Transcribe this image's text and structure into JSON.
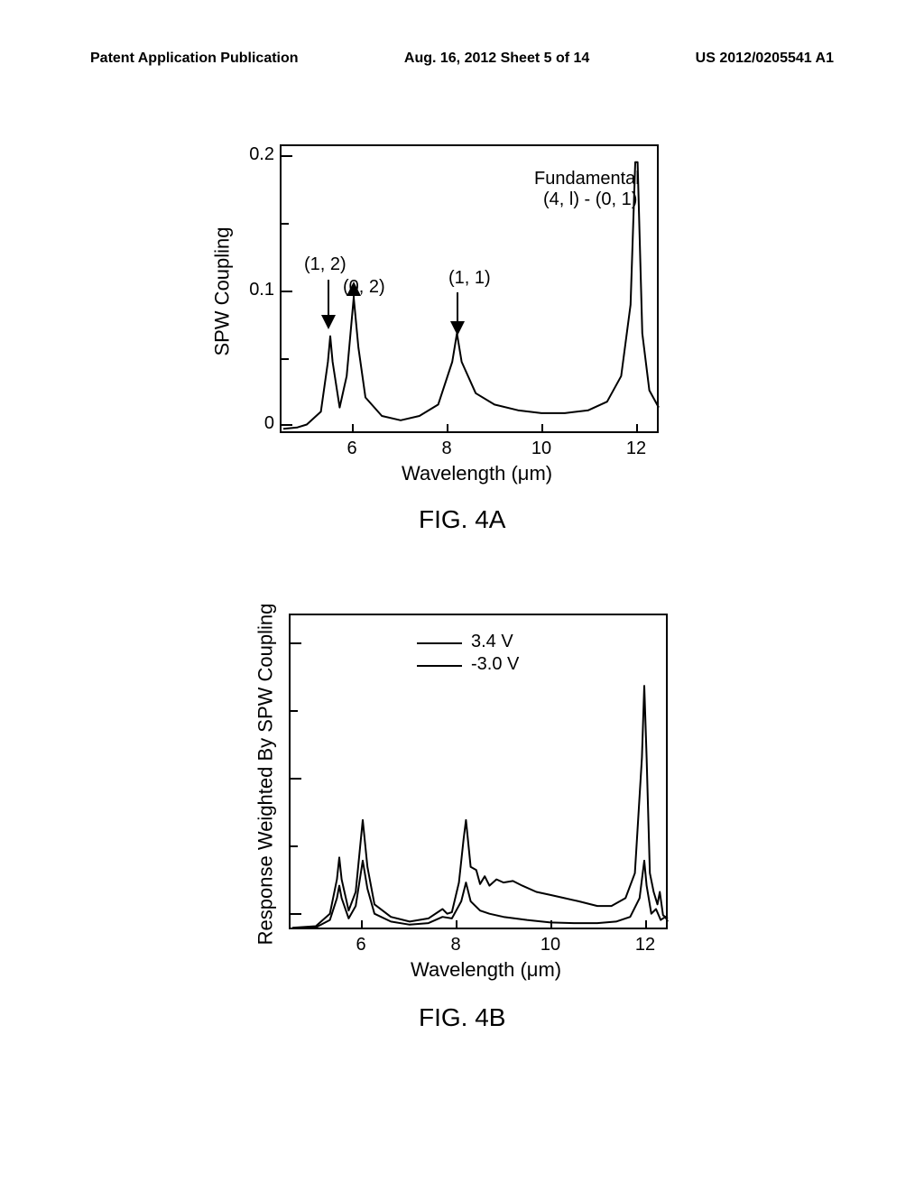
{
  "header": {
    "left": "Patent Application Publication",
    "center": "Aug. 16, 2012  Sheet 5 of 14",
    "right": "US 2012/0205541 A1"
  },
  "fig4a": {
    "caption": "FIG. 4A",
    "type": "line",
    "ylabel": "SPW Coupling",
    "xlabel": "Wavelength (μm)",
    "xlim": [
      4.5,
      12.5
    ],
    "ylim": [
      0.0,
      0.2
    ],
    "ytick_step": 0.1,
    "xticks": [
      6,
      8,
      10,
      12
    ],
    "yticks": [
      0.0,
      0.1,
      0.2
    ],
    "line_color": "#000000",
    "line_width": 2,
    "background_color": "#ffffff",
    "border_color": "#000000",
    "annotations": {
      "peak12": {
        "label": "(1, 2)"
      },
      "peak02": {
        "label": "(0, 2)"
      },
      "peak11": {
        "label": "(1, 1)"
      },
      "fundamental1": {
        "label": "Fundamental"
      },
      "fundamental2": {
        "label": "(4, l) - (0, 1)"
      }
    },
    "annotation_fontsize": 20,
    "label_fontsize": 22,
    "tick_fontsize": 20,
    "series": [
      {
        "x": 4.5,
        "y": 0.003
      },
      {
        "x": 4.8,
        "y": 0.004
      },
      {
        "x": 5.0,
        "y": 0.006
      },
      {
        "x": 5.3,
        "y": 0.015
      },
      {
        "x": 5.45,
        "y": 0.05
      },
      {
        "x": 5.5,
        "y": 0.068
      },
      {
        "x": 5.55,
        "y": 0.05
      },
      {
        "x": 5.7,
        "y": 0.018
      },
      {
        "x": 5.85,
        "y": 0.04
      },
      {
        "x": 6.0,
        "y": 0.095
      },
      {
        "x": 6.1,
        "y": 0.06
      },
      {
        "x": 6.25,
        "y": 0.025
      },
      {
        "x": 6.6,
        "y": 0.012
      },
      {
        "x": 7.0,
        "y": 0.009
      },
      {
        "x": 7.4,
        "y": 0.012
      },
      {
        "x": 7.8,
        "y": 0.02
      },
      {
        "x": 8.1,
        "y": 0.05
      },
      {
        "x": 8.2,
        "y": 0.07
      },
      {
        "x": 8.3,
        "y": 0.05
      },
      {
        "x": 8.6,
        "y": 0.028
      },
      {
        "x": 9.0,
        "y": 0.02
      },
      {
        "x": 9.5,
        "y": 0.016
      },
      {
        "x": 10.0,
        "y": 0.014
      },
      {
        "x": 10.5,
        "y": 0.014
      },
      {
        "x": 11.0,
        "y": 0.016
      },
      {
        "x": 11.4,
        "y": 0.022
      },
      {
        "x": 11.7,
        "y": 0.04
      },
      {
        "x": 11.9,
        "y": 0.09
      },
      {
        "x": 12.0,
        "y": 0.19
      },
      {
        "x": 12.05,
        "y": 0.19
      },
      {
        "x": 12.15,
        "y": 0.07
      },
      {
        "x": 12.3,
        "y": 0.03
      },
      {
        "x": 12.5,
        "y": 0.018
      }
    ]
  },
  "fig4b": {
    "caption": "FIG. 4B",
    "type": "line",
    "ylabel": "Response Weighted By SPW Coupling",
    "xlabel": "Wavelength (μm)",
    "xlim": [
      4.5,
      12.5
    ],
    "ylim": [
      0.0,
      1.0
    ],
    "xticks": [
      6,
      8,
      10,
      12
    ],
    "line_color": "#000000",
    "line_width": 2,
    "background_color": "#ffffff",
    "border_color": "#000000",
    "legend": {
      "items": [
        {
          "label": "3.4 V",
          "color": "#000000"
        },
        {
          "label": "-3.0 V",
          "color": "#000000"
        }
      ]
    },
    "label_fontsize": 22,
    "tick_fontsize": 20,
    "legend_fontsize": 20,
    "series_a": [
      {
        "x": 4.5,
        "y": 0.005
      },
      {
        "x": 5.0,
        "y": 0.01
      },
      {
        "x": 5.3,
        "y": 0.05
      },
      {
        "x": 5.45,
        "y": 0.16
      },
      {
        "x": 5.5,
        "y": 0.23
      },
      {
        "x": 5.55,
        "y": 0.16
      },
      {
        "x": 5.7,
        "y": 0.06
      },
      {
        "x": 5.85,
        "y": 0.12
      },
      {
        "x": 6.0,
        "y": 0.35
      },
      {
        "x": 6.1,
        "y": 0.2
      },
      {
        "x": 6.25,
        "y": 0.08
      },
      {
        "x": 6.6,
        "y": 0.04
      },
      {
        "x": 7.0,
        "y": 0.025
      },
      {
        "x": 7.4,
        "y": 0.035
      },
      {
        "x": 7.7,
        "y": 0.065
      },
      {
        "x": 7.8,
        "y": 0.05
      },
      {
        "x": 7.9,
        "y": 0.055
      },
      {
        "x": 8.05,
        "y": 0.15
      },
      {
        "x": 8.15,
        "y": 0.29
      },
      {
        "x": 8.2,
        "y": 0.35
      },
      {
        "x": 8.3,
        "y": 0.2
      },
      {
        "x": 8.42,
        "y": 0.19
      },
      {
        "x": 8.5,
        "y": 0.145
      },
      {
        "x": 8.6,
        "y": 0.17
      },
      {
        "x": 8.7,
        "y": 0.14
      },
      {
        "x": 8.85,
        "y": 0.16
      },
      {
        "x": 9.0,
        "y": 0.15
      },
      {
        "x": 9.2,
        "y": 0.155
      },
      {
        "x": 9.4,
        "y": 0.14
      },
      {
        "x": 9.7,
        "y": 0.12
      },
      {
        "x": 10.0,
        "y": 0.11
      },
      {
        "x": 10.3,
        "y": 0.1
      },
      {
        "x": 10.6,
        "y": 0.09
      },
      {
        "x": 11.0,
        "y": 0.075
      },
      {
        "x": 11.3,
        "y": 0.075
      },
      {
        "x": 11.6,
        "y": 0.1
      },
      {
        "x": 11.8,
        "y": 0.18
      },
      {
        "x": 11.95,
        "y": 0.55
      },
      {
        "x": 12.0,
        "y": 0.78
      },
      {
        "x": 12.05,
        "y": 0.55
      },
      {
        "x": 12.12,
        "y": 0.18
      },
      {
        "x": 12.2,
        "y": 0.12
      },
      {
        "x": 12.28,
        "y": 0.08
      },
      {
        "x": 12.33,
        "y": 0.12
      },
      {
        "x": 12.4,
        "y": 0.045
      },
      {
        "x": 12.5,
        "y": 0.035
      }
    ],
    "series_b": [
      {
        "x": 4.5,
        "y": 0.003
      },
      {
        "x": 5.0,
        "y": 0.006
      },
      {
        "x": 5.3,
        "y": 0.03
      },
      {
        "x": 5.45,
        "y": 0.1
      },
      {
        "x": 5.5,
        "y": 0.14
      },
      {
        "x": 5.55,
        "y": 0.1
      },
      {
        "x": 5.7,
        "y": 0.035
      },
      {
        "x": 5.85,
        "y": 0.075
      },
      {
        "x": 6.0,
        "y": 0.22
      },
      {
        "x": 6.1,
        "y": 0.13
      },
      {
        "x": 6.25,
        "y": 0.05
      },
      {
        "x": 6.6,
        "y": 0.025
      },
      {
        "x": 7.0,
        "y": 0.015
      },
      {
        "x": 7.4,
        "y": 0.02
      },
      {
        "x": 7.7,
        "y": 0.04
      },
      {
        "x": 7.9,
        "y": 0.035
      },
      {
        "x": 8.1,
        "y": 0.09
      },
      {
        "x": 8.2,
        "y": 0.15
      },
      {
        "x": 8.3,
        "y": 0.09
      },
      {
        "x": 8.5,
        "y": 0.06
      },
      {
        "x": 8.7,
        "y": 0.05
      },
      {
        "x": 9.0,
        "y": 0.04
      },
      {
        "x": 9.5,
        "y": 0.03
      },
      {
        "x": 10.0,
        "y": 0.022
      },
      {
        "x": 10.5,
        "y": 0.02
      },
      {
        "x": 11.0,
        "y": 0.02
      },
      {
        "x": 11.4,
        "y": 0.025
      },
      {
        "x": 11.7,
        "y": 0.04
      },
      {
        "x": 11.9,
        "y": 0.1
      },
      {
        "x": 12.0,
        "y": 0.22
      },
      {
        "x": 12.05,
        "y": 0.14
      },
      {
        "x": 12.15,
        "y": 0.05
      },
      {
        "x": 12.25,
        "y": 0.065
      },
      {
        "x": 12.35,
        "y": 0.03
      },
      {
        "x": 12.45,
        "y": 0.04
      },
      {
        "x": 12.5,
        "y": 0.025
      }
    ]
  }
}
